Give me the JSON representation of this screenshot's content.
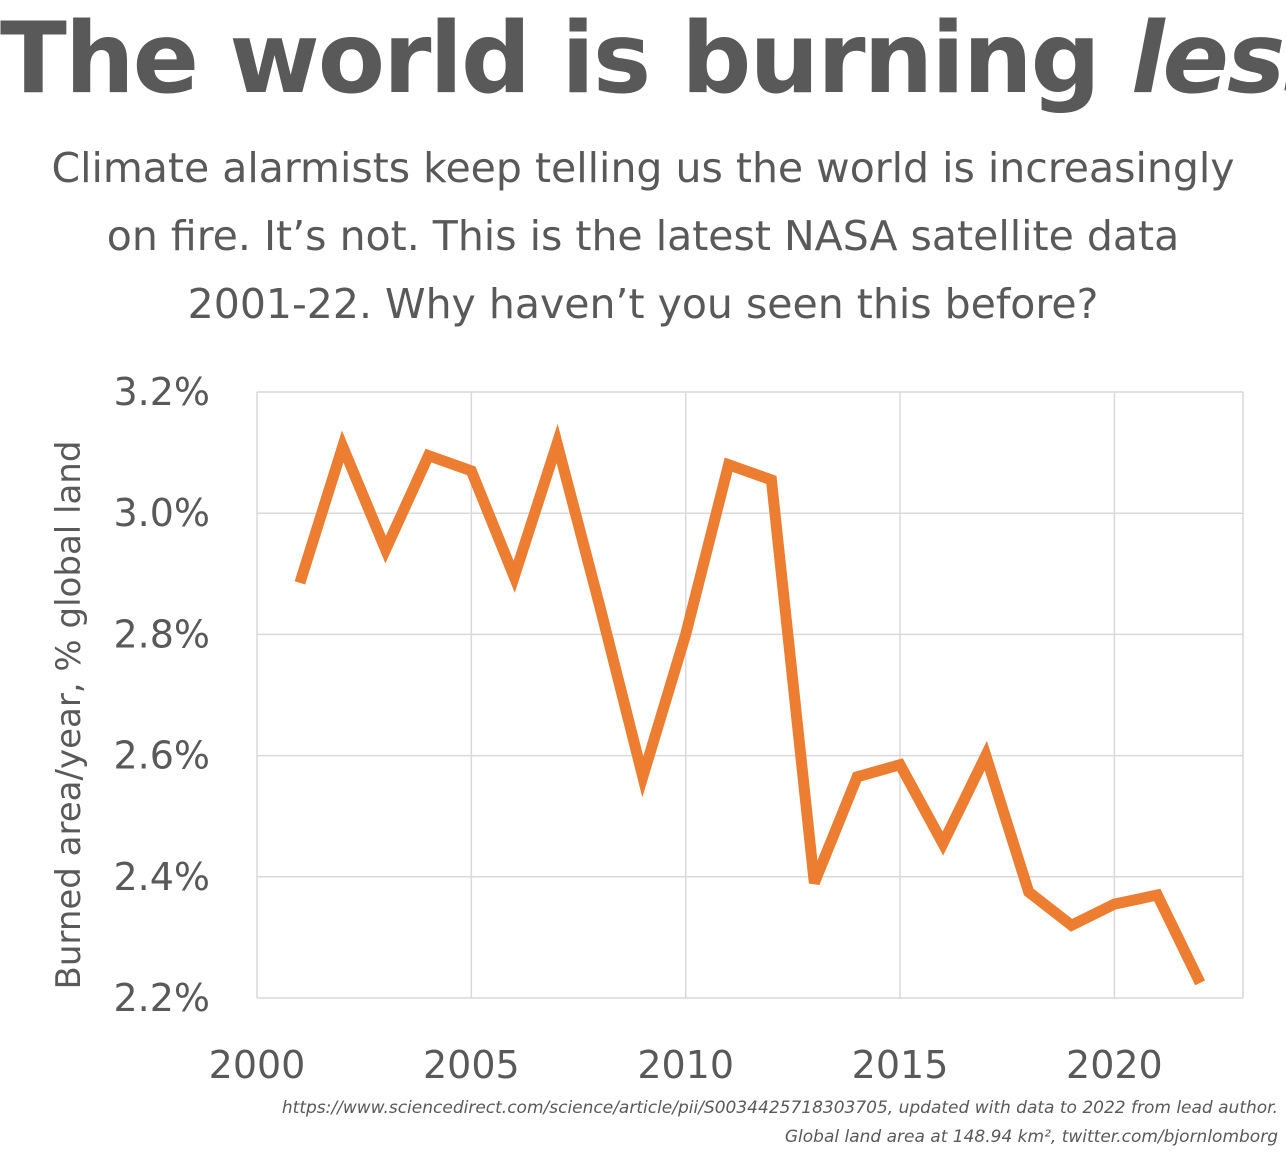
{
  "title": {
    "main": "The world is burning ",
    "emphasis": "less"
  },
  "subtitle": {
    "lines": [
      "Climate alarmists keep telling us the world is increasingly",
      "on fire. It’s not. This is the latest NASA satellite data",
      "2001-22. Why haven’t you seen this before?"
    ]
  },
  "footnote": {
    "line1": "https://www.sciencedirect.com/science/article/pii/S0034425718303705, updated with data to 2022 from lead author.",
    "line2": "Global land area at 148.94 km², twitter.com/bjornlomborg"
  },
  "chart_data": {
    "type": "line",
    "title": "The world is burning less",
    "xlabel": "",
    "ylabel": "Burned area/year, % global land",
    "xlim": [
      2000,
      2023
    ],
    "ylim": [
      2.2,
      3.2
    ],
    "x_ticks": [
      2000,
      2005,
      2010,
      2015,
      2020
    ],
    "x_tick_labels": [
      "2000",
      "2005",
      "2010",
      "2015",
      "2020"
    ],
    "y_ticks": [
      2.2,
      2.4,
      2.6,
      2.8,
      3.0,
      3.2
    ],
    "y_tick_labels": [
      "2.2%",
      "2.4%",
      "2.6%",
      "2.8%",
      "3.0%",
      "3.2%"
    ],
    "grid": true,
    "legend": "none",
    "series": [
      {
        "color": "#ed7d31",
        "x": [
          2001,
          2002,
          2003,
          2004,
          2005,
          2006,
          2007,
          2008,
          2009,
          2010,
          2011,
          2012,
          2013,
          2014,
          2015,
          2016,
          2017,
          2018,
          2019,
          2020,
          2021,
          2022
        ],
        "values": [
          2.885,
          3.11,
          2.94,
          3.095,
          3.07,
          2.895,
          3.115,
          2.845,
          2.565,
          2.8,
          3.08,
          3.055,
          2.39,
          2.565,
          2.585,
          2.455,
          2.6,
          2.375,
          2.32,
          2.355,
          2.37,
          2.225
        ]
      }
    ]
  }
}
